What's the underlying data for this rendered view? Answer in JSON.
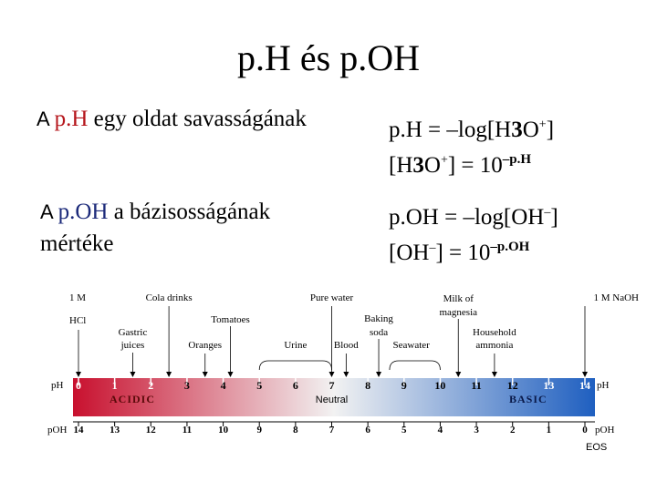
{
  "title": "p.H és p.OH",
  "left": {
    "line1_prefix": "A ",
    "line1_term": "p.H",
    "line1_rest": " egy oldat savasságának",
    "line2_prefix": "A ",
    "line2_term": "p.OH",
    "line2_rest": " a bázisosságának",
    "line3": "mértéke"
  },
  "right": {
    "ph_formula_a": "p.H = –log[H",
    "ph_formula_sub": "3",
    "ph_formula_b": "O",
    "ph_formula_sup": "+",
    "ph_formula_c": "]",
    "h3o_a": "[H",
    "h3o_sub": "3",
    "h3o_b": "O",
    "h3o_sup": "+",
    "h3o_c": "] = 10",
    "h3o_exp": "–p.H",
    "poh_formula": "p.OH = –log[OH",
    "poh_sup": "–",
    "poh_formula_end": "]",
    "oh_a": "[OH",
    "oh_sup": "–",
    "oh_c": "] = 10",
    "oh_exp": "–p.OH"
  },
  "scale": {
    "ph_label": "pH",
    "poh_label": "pOH",
    "ph_ticks": [
      "0",
      "1",
      "2",
      "3",
      "4",
      "5",
      "6",
      "7",
      "8",
      "9",
      "10",
      "11",
      "12",
      "13",
      "14"
    ],
    "poh_ticks": [
      "14",
      "13",
      "12",
      "11",
      "10",
      "9",
      "8",
      "7",
      "6",
      "5",
      "4",
      "3",
      "2",
      "1",
      "0"
    ],
    "acidic": "ACIDIC",
    "neutral": "Neutral",
    "basic": "BASIC",
    "colors": {
      "acid": "#c8102e",
      "neutral": "#f2f2f2",
      "base": "#1f5fc0"
    },
    "annotations_top": [
      {
        "text": "1 M",
        "ph": 0,
        "row": 0
      },
      {
        "text": "HCl",
        "ph": 0,
        "row": 1
      },
      {
        "text": "Cola drinks",
        "ph": 2.5,
        "row": 0
      },
      {
        "text": "Gastric",
        "ph": 1.5,
        "row": 2
      },
      {
        "text": "juices",
        "ph": 1.5,
        "row": 3
      },
      {
        "text": "Tomatoes",
        "ph": 4.2,
        "row": 1
      },
      {
        "text": "Oranges",
        "ph": 3.5,
        "row": 3
      },
      {
        "text": "Pure water",
        "ph": 7,
        "row": 0
      },
      {
        "text": "Urine",
        "ph": 6,
        "row": 3
      },
      {
        "text": "Blood",
        "ph": 7.4,
        "row": 3
      },
      {
        "text": "Baking",
        "ph": 8.3,
        "row": 1
      },
      {
        "text": "soda",
        "ph": 8.3,
        "row": 2
      },
      {
        "text": "Seawater",
        "ph": 9.2,
        "row": 3
      },
      {
        "text": "Milk of",
        "ph": 10.5,
        "row": 0
      },
      {
        "text": "magnesia",
        "ph": 10.5,
        "row": 1
      },
      {
        "text": "Household",
        "ph": 11.5,
        "row": 2
      },
      {
        "text": "ammonia",
        "ph": 11.5,
        "row": 3
      },
      {
        "text": "1 M NaOH",
        "ph": 14,
        "row": 0
      }
    ],
    "credit": "EOS"
  }
}
